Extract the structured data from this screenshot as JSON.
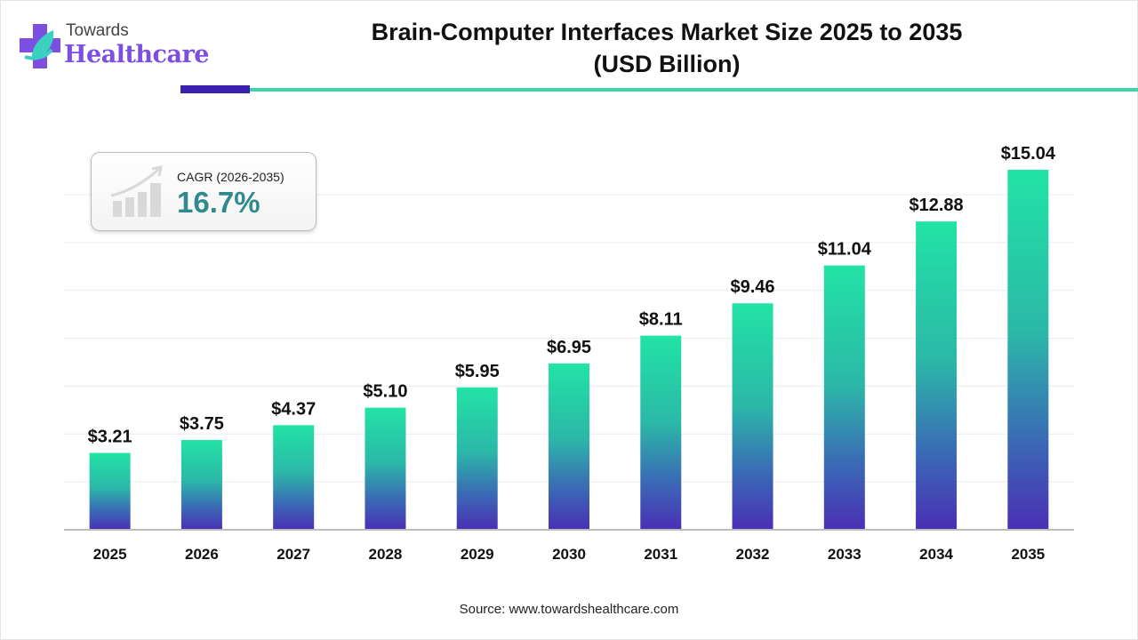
{
  "logo": {
    "line1": "Towards",
    "line2": "Healthcare"
  },
  "title_line1": "Brain-Computer Interfaces Market Size 2025 to 2035",
  "title_line2": "(USD Billion)",
  "cagr": {
    "label": "CAGR (2026-2035)",
    "value": "16.7%",
    "icon": "growth-chart-icon"
  },
  "source": "Source: www.towardshealthcare.com",
  "colors": {
    "bar_top": "#22e3a5",
    "bar_bottom": "#4a2fb5",
    "accent_dark": "#3a1fb0",
    "accent_light": "#3dd6a8",
    "cagr_text": "#2f8a8e"
  },
  "chart_data": {
    "type": "bar",
    "title": "Brain-Computer Interfaces Market Size 2025 to 2035 (USD Billion)",
    "categories": [
      "2025",
      "2026",
      "2027",
      "2028",
      "2029",
      "2030",
      "2031",
      "2032",
      "2033",
      "2034",
      "2035"
    ],
    "values": [
      3.21,
      3.75,
      4.37,
      5.1,
      5.95,
      6.95,
      8.11,
      9.46,
      11.04,
      12.88,
      15.04
    ],
    "data_labels": [
      "$3.21",
      "$3.75",
      "$4.37",
      "$5.10",
      "$5.95",
      "$6.95",
      "$8.11",
      "$9.46",
      "$11.04",
      "$12.88",
      "$15.04"
    ],
    "xlabel": "",
    "ylabel": "",
    "ylim": [
      0,
      16
    ],
    "grid": true,
    "legend": "none"
  }
}
